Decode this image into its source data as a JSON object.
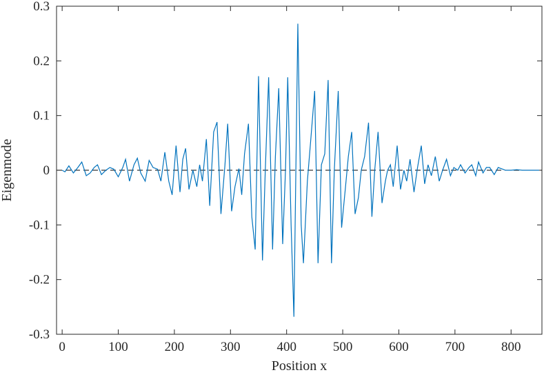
{
  "chart_data": {
    "type": "line",
    "x_label": "Position x",
    "y_label": "Eigenmode",
    "x": [
      0,
      5,
      12,
      20,
      28,
      35,
      43,
      50,
      57,
      63,
      70,
      78,
      85,
      92,
      100,
      108,
      113,
      120,
      128,
      134,
      140,
      148,
      155,
      162,
      170,
      176,
      183,
      190,
      196,
      203,
      210,
      215,
      220,
      226,
      233,
      240,
      245,
      250,
      257,
      263,
      270,
      276,
      283,
      290,
      295,
      302,
      308,
      315,
      320,
      325,
      332,
      338,
      344,
      350,
      357,
      362,
      368,
      375,
      380,
      386,
      393,
      398,
      402,
      408,
      413,
      420,
      426,
      430,
      437,
      443,
      450,
      456,
      462,
      468,
      474,
      480,
      485,
      492,
      498,
      505,
      510,
      516,
      522,
      528,
      533,
      539,
      546,
      552,
      557,
      563,
      570,
      576,
      580,
      585,
      590,
      597,
      603,
      609,
      614,
      620,
      627,
      633,
      640,
      646,
      652,
      658,
      665,
      672,
      678,
      685,
      692,
      698,
      705,
      710,
      718,
      725,
      730,
      737,
      742,
      750,
      756,
      762,
      770,
      777,
      785,
      790,
      800,
      810,
      820,
      830,
      840,
      850
    ],
    "series": [
      {
        "color": "#0072bd",
        "values": [
          0,
          -0.003,
          0.008,
          -0.005,
          0.005,
          0.015,
          -0.01,
          -0.005,
          0.005,
          0.01,
          -0.008,
          0,
          0.005,
          0.002,
          -0.012,
          0.005,
          0.02,
          -0.02,
          0.01,
          0.022,
          -0.005,
          -0.02,
          0.018,
          0.005,
          0.002,
          -0.02,
          0.033,
          -0.02,
          -0.045,
          0.045,
          -0.04,
          0.02,
          0.04,
          -0.035,
          0,
          -0.03,
          0.01,
          -0.02,
          0.057,
          -0.065,
          0.07,
          0.088,
          -0.08,
          0.008,
          0.085,
          -0.075,
          -0.03,
          0.003,
          -0.045,
          0.03,
          0.085,
          -0.085,
          -0.145,
          0.172,
          -0.165,
          0,
          0.17,
          -0.145,
          0.025,
          0.15,
          -0.135,
          0,
          0.17,
          -0.1,
          -0.268,
          0.268,
          -0.1,
          -0.17,
          -0.02,
          0.055,
          0.145,
          -0.17,
          0.01,
          0.03,
          0.165,
          -0.17,
          0,
          0.145,
          -0.105,
          -0.03,
          0.025,
          0.07,
          -0.08,
          -0.05,
          0,
          0.025,
          0.087,
          -0.085,
          0,
          0.07,
          -0.06,
          -0.02,
          0,
          0.01,
          -0.03,
          0.045,
          -0.035,
          0,
          -0.02,
          0.02,
          -0.04,
          0.003,
          0.045,
          -0.025,
          0.01,
          -0.01,
          0.025,
          -0.02,
          0,
          0.02,
          -0.01,
          0.005,
          0,
          0.01,
          -0.005,
          0.005,
          0.01,
          -0.01,
          0.015,
          -0.005,
          0.005,
          0.005,
          -0.008,
          0.005,
          0.002,
          0,
          0,
          0.001,
          0,
          0,
          0,
          0
        ]
      }
    ],
    "hline": 0,
    "xlim": [
      -10,
      855
    ],
    "ylim": [
      -0.3,
      0.3
    ],
    "xticks": [
      0,
      100,
      200,
      300,
      400,
      500,
      600,
      700,
      800
    ],
    "yticks": [
      -0.3,
      -0.2,
      -0.1,
      0,
      0.1,
      0.2,
      0.3
    ]
  }
}
